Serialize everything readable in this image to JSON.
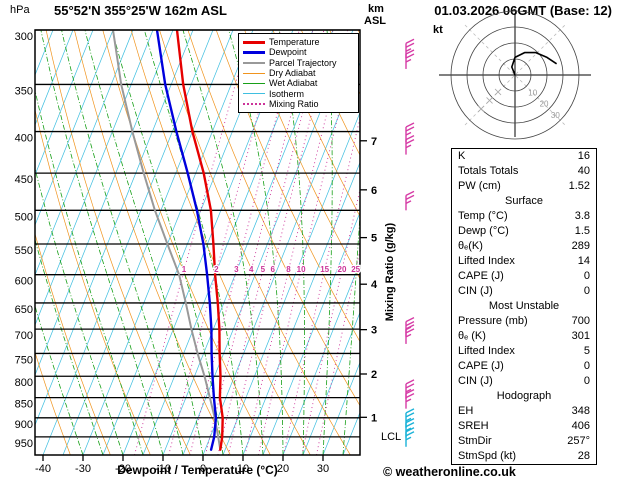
{
  "header": {
    "pressure_unit": "hPa",
    "station": "55°52'N 355°25'W 162m ASL",
    "km_label": "km",
    "asl_label": "ASL",
    "datetime": "01.03.2026 06GMT (Base: 12)"
  },
  "axes": {
    "pressure_ticks": [
      300,
      350,
      400,
      450,
      500,
      550,
      600,
      650,
      700,
      750,
      800,
      850,
      900,
      950
    ],
    "temp_ticks": [
      -40,
      -30,
      -20,
      -10,
      0,
      10,
      20,
      30
    ],
    "km_ticks": [
      1,
      2,
      3,
      4,
      5,
      6,
      7
    ],
    "xlabel": "Dewpoint / Temperature (°C)",
    "right_axis_label": "Mixing Ratio (g/kg)",
    "lcl_label": "LCL"
  },
  "colors": {
    "temperature": "#e60000",
    "dewpoint": "#0000dd",
    "parcel": "#999999",
    "dry_adiabat": "#f0941e",
    "wet_adiabat": "#18a018",
    "isotherm": "#3fbfe0",
    "mixing_ratio": "#cc3399",
    "barb_upper": "#d63ca6",
    "barb_lower": "#1ab2d8"
  },
  "legend": [
    {
      "label": "Temperature",
      "color": "#e60000",
      "style": "solid",
      "weight": 3
    },
    {
      "label": "Dewpoint",
      "color": "#0000dd",
      "style": "solid",
      "weight": 3
    },
    {
      "label": "Parcel Trajectory",
      "color": "#999999",
      "style": "solid",
      "weight": 2
    },
    {
      "label": "Dry Adiabat",
      "color": "#f0941e",
      "style": "solid",
      "weight": 1
    },
    {
      "label": "Wet Adiabat",
      "color": "#18a018",
      "style": "solid",
      "weight": 1
    },
    {
      "label": "Isotherm",
      "color": "#3fbfe0",
      "style": "solid",
      "weight": 1
    },
    {
      "label": "Mixing Ratio",
      "color": "#cc3399",
      "style": "dotted",
      "weight": 2
    }
  ],
  "hodograph": {
    "unit_label": "kt",
    "ring_labels": [
      10,
      20,
      30
    ],
    "rings_kt": [
      10,
      20,
      30,
      40
    ],
    "trace_kt": [
      [
        0,
        0
      ],
      [
        -2,
        5
      ],
      [
        0,
        11
      ],
      [
        6,
        14
      ],
      [
        13,
        14
      ],
      [
        20,
        11
      ],
      [
        26,
        7
      ]
    ]
  },
  "stats": {
    "rows": [
      {
        "label": "K",
        "value": "16"
      },
      {
        "label": "Totals Totals",
        "value": "40"
      },
      {
        "label": "PW (cm)",
        "value": "1.52"
      },
      {
        "header": "Surface"
      },
      {
        "label": "Temp (°C)",
        "value": "3.8"
      },
      {
        "label": "Dewp (°C)",
        "value": "1.5"
      },
      {
        "label": "θₑ(K)",
        "value": "289"
      },
      {
        "label": "Lifted Index",
        "value": "14"
      },
      {
        "label": "CAPE (J)",
        "value": "0"
      },
      {
        "label": "CIN (J)",
        "value": "0"
      },
      {
        "header": "Most Unstable"
      },
      {
        "label": "Pressure (mb)",
        "value": "700"
      },
      {
        "label": "θₑ (K)",
        "value": "301"
      },
      {
        "label": "Lifted Index",
        "value": "5"
      },
      {
        "label": "CAPE (J)",
        "value": "0"
      },
      {
        "label": "CIN (J)",
        "value": "0"
      },
      {
        "header": "Hodograph"
      },
      {
        "label": "EH",
        "value": "348"
      },
      {
        "label": "SREH",
        "value": "406"
      },
      {
        "label": "StmDir",
        "value": "257°"
      },
      {
        "label": "StmSpd (kt)",
        "value": "28"
      }
    ]
  },
  "footer": {
    "copyright": "© weatheronline.co.uk"
  },
  "chart_data": {
    "type": "skewt-log-p",
    "title": "55°52'N 355°25'W 162m ASL",
    "xlabel": "Dewpoint / Temperature (°C)",
    "pressure_range_hpa": [
      300,
      1000
    ],
    "temp_range_c": [
      -40,
      35
    ],
    "pressure_hpa": [
      985,
      950,
      900,
      850,
      800,
      750,
      700,
      650,
      600,
      550,
      500,
      450,
      400,
      350,
      300
    ],
    "temperature_c": [
      3.8,
      3.0,
      1.2,
      -1.5,
      -3.5,
      -6,
      -8.5,
      -11.5,
      -15,
      -18.5,
      -22.5,
      -28,
      -35,
      -42,
      -49
    ],
    "dewpoint_c": [
      1.5,
      1.0,
      -0.5,
      -3,
      -5.5,
      -8,
      -10.5,
      -13.5,
      -17,
      -21,
      -26,
      -32,
      -39,
      -46.5,
      -54
    ],
    "parcel_c": [
      3.8,
      2.0,
      -0.8,
      -4,
      -7.5,
      -11.5,
      -15.5,
      -19.5,
      -24,
      -30,
      -36.5,
      -43,
      -50,
      -57.5,
      -65
    ],
    "mixing_ratio_lines_gkg": [
      1,
      2,
      3,
      4,
      5,
      6,
      8,
      10,
      15,
      20,
      25
    ],
    "wind_barbs": [
      {
        "p": 325,
        "color": "#d63ca6"
      },
      {
        "p": 335,
        "color": "#d63ca6"
      },
      {
        "p": 412,
        "color": "#d63ca6"
      },
      {
        "p": 427,
        "color": "#d63ca6"
      },
      {
        "p": 500,
        "color": "#d63ca6"
      },
      {
        "p": 715,
        "color": "#d63ca6"
      },
      {
        "p": 730,
        "color": "#d63ca6"
      },
      {
        "p": 853,
        "color": "#d63ca6"
      },
      {
        "p": 877,
        "color": "#d63ca6"
      },
      {
        "p": 926,
        "color": "#1ab2d8"
      },
      {
        "p": 952,
        "color": "#1ab2d8"
      },
      {
        "p": 977,
        "color": "#1ab2d8"
      }
    ]
  }
}
